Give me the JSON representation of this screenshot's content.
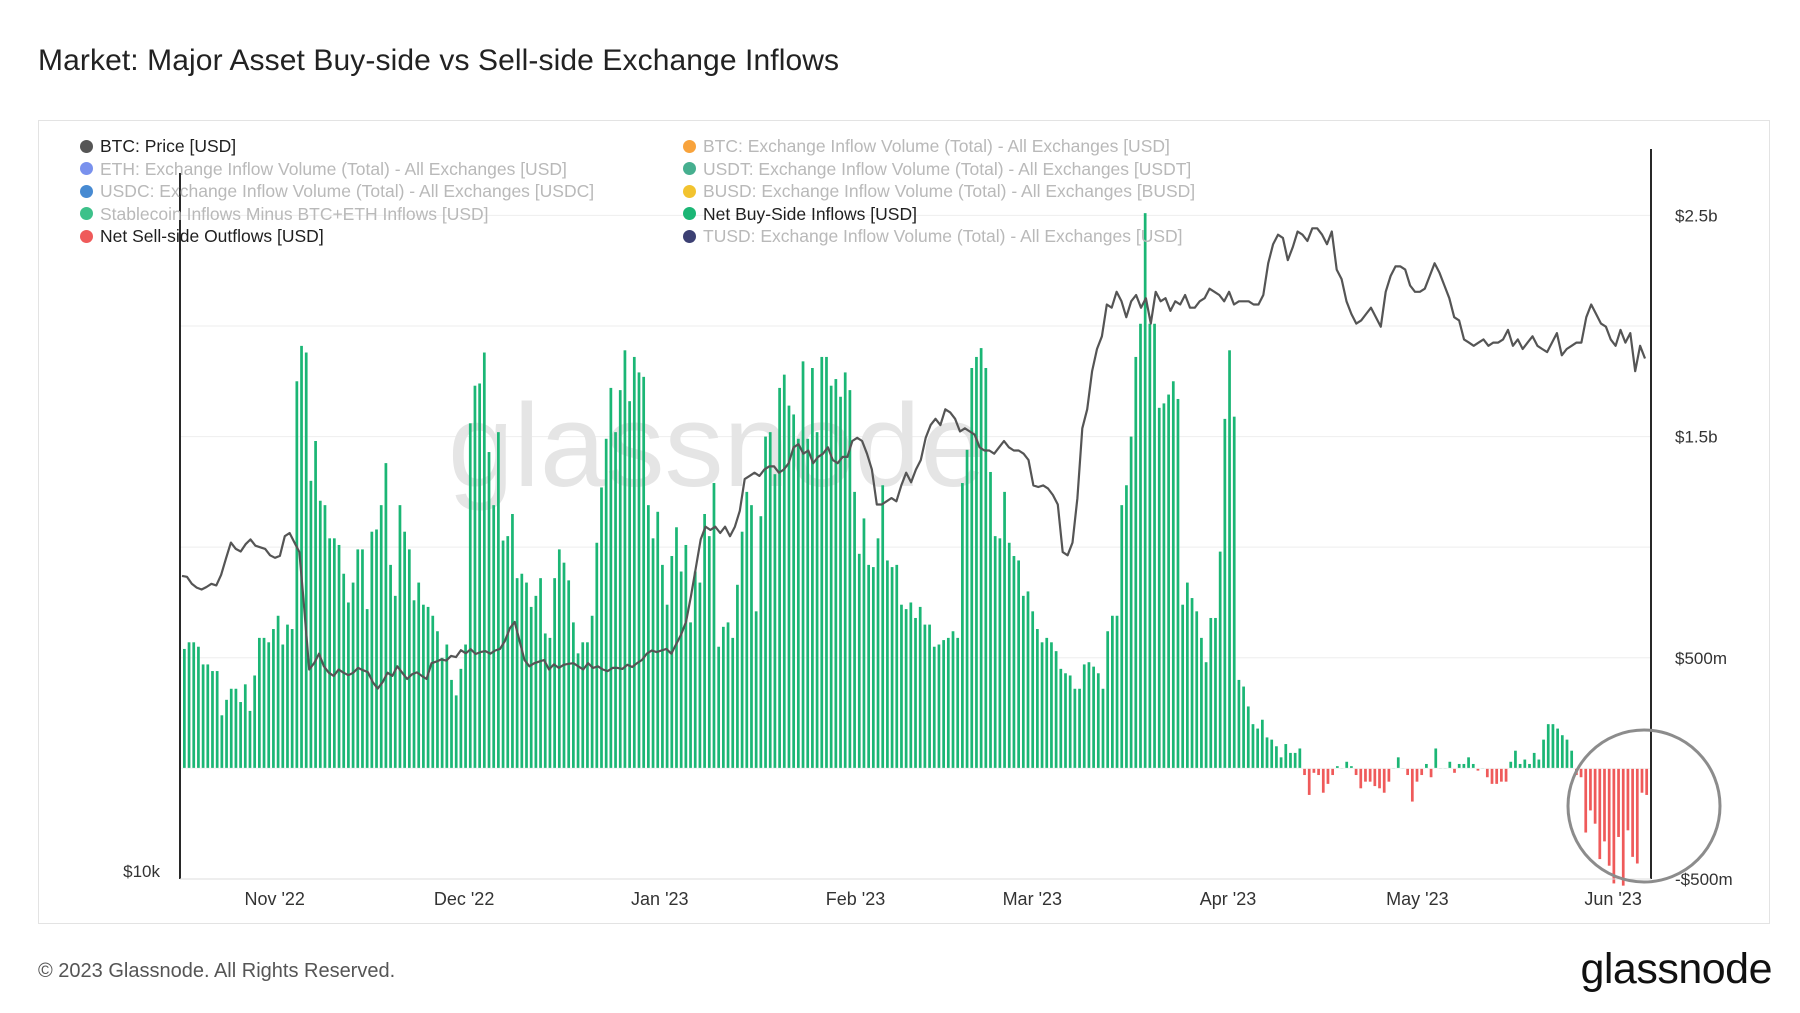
{
  "title": "Market: Major Asset Buy-side vs Sell-side Exchange Inflows",
  "footer": "© 2023 Glassnode. All Rights Reserved.",
  "brand": "glassnode",
  "watermark": "glassnode",
  "legend": {
    "left": [
      {
        "label": "BTC: Price [USD]",
        "color": "#555555",
        "active": true
      },
      {
        "label": "ETH: Exchange Inflow Volume (Total) - All Exchanges [USD]",
        "color": "#627eea",
        "active": false
      },
      {
        "label": "USDC: Exchange Inflow Volume (Total) - All Exchanges [USDC]",
        "color": "#2775ca",
        "active": false
      },
      {
        "label": "Stablecoin Inflows Minus BTC+ETH Inflows [USD]",
        "color": "#1bb675",
        "active": false
      },
      {
        "label": "Net Sell-side Outflows [USD]",
        "color": "#ef5a5a",
        "active": true
      }
    ],
    "right": [
      {
        "label": "BTC: Exchange Inflow Volume (Total) - All Exchanges [USD]",
        "color": "#f7931a",
        "active": false
      },
      {
        "label": "USDT: Exchange Inflow Volume (Total) - All Exchanges [USDT]",
        "color": "#26a17b",
        "active": false
      },
      {
        "label": "BUSD: Exchange Inflow Volume (Total) - All Exchanges [BUSD]",
        "color": "#f0b90b",
        "active": false
      },
      {
        "label": "Net Buy-Side Inflows [USD]",
        "color": "#1bb675",
        "active": true
      },
      {
        "label": "TUSD: Exchange Inflow Volume (Total) - All Exchanges [USD]",
        "color": "#1a1f5a",
        "active": false
      }
    ]
  },
  "chart_data": {
    "type": "bar",
    "x_start": "2022-10-17",
    "x_end": "2023-06-07",
    "x_ticks": [
      {
        "label": "Nov '22",
        "date": "2022-11-01"
      },
      {
        "label": "Dec '22",
        "date": "2022-12-01"
      },
      {
        "label": "Jan '23",
        "date": "2023-01-01"
      },
      {
        "label": "Feb '23",
        "date": "2023-02-01"
      },
      {
        "label": "Mar '23",
        "date": "2023-03-01"
      },
      {
        "label": "Apr '23",
        "date": "2023-04-01"
      },
      {
        "label": "May '23",
        "date": "2023-05-01"
      },
      {
        "label": "Jun '23",
        "date": "2023-06-01"
      }
    ],
    "y_right_ticks": [
      {
        "label": "$2.5b",
        "value": 2500
      },
      {
        "label": "$1.5b",
        "value": 1500
      },
      {
        "label": "$500m",
        "value": 500
      },
      {
        "label": "-$500m",
        "value": -500
      }
    ],
    "y_left_ticks": [
      {
        "label": "$10k"
      }
    ],
    "y_right_range_musd": [
      -500,
      2800
    ],
    "price_range_usd": [
      10000,
      33000
    ],
    "series": [
      {
        "name": "Net Buy-Side Inflows [USD]",
        "color": "#1bb675",
        "unit": "million USD",
        "values": [
          540,
          570,
          570,
          550,
          470,
          470,
          440,
          440,
          240,
          310,
          360,
          360,
          300,
          380,
          260,
          420,
          590,
          590,
          570,
          630,
          690,
          560,
          650,
          630,
          1750,
          1910,
          1880,
          1300,
          1480,
          1210,
          1190,
          1040,
          1040,
          1010,
          880,
          750,
          840,
          990,
          990,
          720,
          1070,
          1080,
          1190,
          1380,
          920,
          780,
          1190,
          1070,
          990,
          760,
          840,
          740,
          730,
          690,
          620,
          500,
          560,
          400,
          330,
          450,
          560,
          1560,
          1730,
          1740,
          1880,
          1430,
          1190,
          1520,
          1030,
          1050,
          1150,
          860,
          880,
          840,
          730,
          780,
          860,
          610,
          590,
          860,
          990,
          930,
          850,
          660,
          520,
          570,
          570,
          690,
          1020,
          1270,
          1490,
          1720,
          1520,
          1710,
          1890,
          1660,
          1860,
          1790,
          1770,
          1190,
          1040,
          1160,
          920,
          740,
          960,
          1090,
          890,
          1010,
          660,
          890,
          840,
          1150,
          1050,
          1290,
          550,
          640,
          660,
          590,
          830,
          1070,
          1250,
          1190,
          710,
          1140,
          1500,
          1520,
          1330,
          1720,
          1780,
          1640,
          1600,
          1490,
          1840,
          1490,
          1810,
          1520,
          1860,
          1860,
          1730,
          1760,
          1680,
          1790,
          1710,
          1250,
          970,
          1130,
          920,
          910,
          1040,
          1280,
          940,
          910,
          920,
          740,
          720,
          750,
          680,
          730,
          650,
          650,
          550,
          560,
          580,
          590,
          620,
          590,
          1290,
          1440,
          1810,
          1860,
          1900,
          1810,
          1340,
          1050,
          1040,
          1250,
          1020,
          960,
          940,
          780,
          800,
          710,
          630,
          570,
          590,
          570,
          530,
          450,
          430,
          420,
          360,
          360,
          470,
          480,
          460,
          430,
          360,
          620,
          690,
          690,
          1190,
          1280,
          1500,
          1860,
          2010,
          2510,
          2010,
          2010,
          1630,
          1650,
          1690,
          1750,
          1670,
          740,
          840,
          770,
          710,
          590,
          480,
          680,
          680,
          980,
          1580,
          1890,
          1590,
          400,
          370,
          280,
          200,
          180,
          220,
          140,
          130,
          100,
          50,
          110,
          70,
          70,
          90,
          -30,
          -120,
          -20,
          -30,
          -110,
          -70,
          -30,
          10,
          0,
          30,
          10,
          -30,
          -90,
          -60,
          -60,
          -80,
          -90,
          -110,
          -60,
          0,
          50,
          0,
          -30,
          -150,
          -60,
          -30,
          20,
          -40,
          90,
          0,
          0,
          30,
          -20,
          20,
          20,
          50,
          20,
          -10,
          0,
          -40,
          -70,
          -70,
          -60,
          -60,
          30,
          80,
          20,
          40,
          20,
          70,
          40,
          130,
          200,
          200,
          180,
          150,
          130,
          80,
          -30,
          -40,
          -290,
          -190,
          -250,
          -410,
          -330,
          -440,
          -520,
          -310,
          -530,
          -280,
          -400,
          -430,
          -110,
          -120
        ]
      },
      {
        "name": "BTC: Price [USD]",
        "color": "#555555",
        "unit": "USD",
        "values": [
          19550,
          19520,
          19300,
          19180,
          19120,
          19200,
          19300,
          19250,
          19580,
          20100,
          20600,
          20400,
          20320,
          20550,
          20700,
          20500,
          20450,
          20400,
          20200,
          20120,
          20180,
          20800,
          20900,
          20600,
          20300,
          18500,
          16600,
          16800,
          17100,
          16700,
          16500,
          16400,
          16600,
          16500,
          16420,
          16500,
          16650,
          16580,
          16520,
          16200,
          16000,
          16200,
          16500,
          16400,
          16700,
          16500,
          16300,
          16450,
          16510,
          16400,
          16300,
          16800,
          16850,
          16920,
          16880,
          17030,
          16990,
          17210,
          17110,
          17240,
          17090,
          17150,
          17180,
          17100,
          17200,
          17250,
          17500,
          17900,
          18100,
          17500,
          16900,
          16700,
          16800,
          16850,
          16900,
          16600,
          16760,
          16650,
          16750,
          16780,
          16800,
          16700,
          16600,
          16800,
          16650,
          16700,
          16600,
          16550,
          16650,
          16650,
          16620,
          16750,
          16680,
          16800,
          16900,
          17100,
          17200,
          17150,
          17200,
          17250,
          17100,
          17400,
          17700,
          18100,
          18900,
          19800,
          20700,
          21100,
          21000,
          21100,
          20900,
          21100,
          20800,
          21100,
          21600,
          22600,
          22700,
          22800,
          22700,
          22900,
          23000,
          23000,
          22800,
          22900,
          23100,
          23600,
          23700,
          23400,
          23500,
          23100,
          23300,
          23400,
          23600,
          23200,
          23100,
          23300,
          23300,
          23800,
          23900,
          23800,
          23400,
          22900,
          21800,
          21800,
          21900,
          22000,
          21900,
          22400,
          22800,
          22500,
          22900,
          23200,
          23900,
          24300,
          24500,
          24300,
          24800,
          24700,
          24500,
          24100,
          24200,
          24100,
          24000,
          23600,
          23500,
          23500,
          23400,
          23600,
          23800,
          23600,
          23500,
          23500,
          23400,
          23200,
          22400,
          22350,
          22400,
          22300,
          22100,
          21800,
          20300,
          20200,
          20600,
          22000,
          24200,
          24800,
          26000,
          26700,
          27100,
          28100,
          28000,
          28500,
          28200,
          27700,
          28200,
          28400,
          28000,
          28300,
          27500,
          28500,
          28200,
          28300,
          27900,
          28200,
          28100,
          28400,
          28000,
          28000,
          28200,
          28300,
          28600,
          28500,
          28400,
          28200,
          28500,
          28100,
          28200,
          28200,
          28200,
          28100,
          28100,
          28400,
          29400,
          30000,
          30300,
          30200,
          29500,
          29900,
          30400,
          30300,
          30100,
          30500,
          30500,
          30300,
          30000,
          30400,
          29200,
          28900,
          28200,
          27800,
          27500,
          27600,
          27800,
          28000,
          27700,
          27400,
          28500,
          29000,
          29300,
          29300,
          29200,
          28700,
          28500,
          28500,
          28600,
          29000,
          29400,
          29100,
          28700,
          28300,
          27700,
          27600,
          27000,
          26900,
          26800,
          26900,
          27000,
          26800,
          26900,
          26900,
          27000,
          27300,
          26800,
          27000,
          26700,
          26900,
          27100,
          26800,
          26700,
          26600,
          26900,
          27200,
          26500,
          26700,
          26800,
          26900,
          26900,
          27700,
          28100,
          27800,
          27500,
          27400,
          27000,
          26800,
          27300,
          26900,
          27200,
          26000,
          26800,
          26400
        ]
      }
    ]
  }
}
